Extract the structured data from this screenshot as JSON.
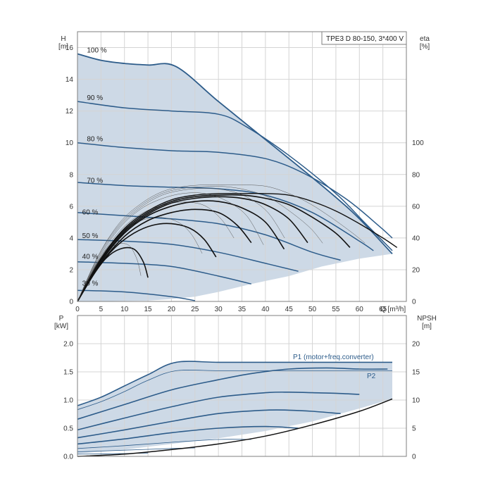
{
  "chart_data": [
    {
      "type": "line",
      "title": "TPE3 D 80-150, 3*400 V",
      "ylabel": "H",
      "yunit": "[m]",
      "y2label": "eta",
      "y2unit": "[%]",
      "xlabel": "Q [m³/h]",
      "xlim": [
        0,
        70
      ],
      "ylim": [
        0,
        17
      ],
      "y2lim": [
        0,
        100
      ],
      "xticks": [
        "0",
        "5",
        "10",
        "15",
        "20",
        "25",
        "30",
        "35",
        "40",
        "45",
        "50",
        "55",
        "60",
        "65"
      ],
      "yticks": [
        "0",
        "2",
        "4",
        "6",
        "8",
        "10",
        "12",
        "14",
        "16"
      ],
      "y2ticks": [
        "0",
        "20",
        "40",
        "60",
        "80",
        "100"
      ],
      "grid": true,
      "colors": {
        "envelope_fill": "#cdd9e6",
        "curve": "#2d5c8a",
        "eta": "#111111"
      },
      "series": [
        {
          "name": "100 %",
          "points": [
            [
              0,
              15.6
            ],
            [
              5,
              15.2
            ],
            [
              10,
              15.0
            ],
            [
              15,
              14.9
            ],
            [
              21,
              14.8
            ],
            [
              30,
              12.6
            ],
            [
              40,
              10.2
            ],
            [
              50,
              7.8
            ],
            [
              59,
              5.5
            ],
            [
              67,
              3.0
            ]
          ]
        },
        {
          "name": "90 %",
          "points": [
            [
              0,
              12.6
            ],
            [
              10,
              12.2
            ],
            [
              20,
              12.0
            ],
            [
              30,
              11.8
            ],
            [
              36,
              11.0
            ],
            [
              45,
              9.2
            ],
            [
              55,
              6.8
            ],
            [
              61,
              5.0
            ],
            [
              67,
              3.2
            ]
          ]
        },
        {
          "name": "80 %",
          "points": [
            [
              0,
              10.0
            ],
            [
              10,
              9.7
            ],
            [
              20,
              9.5
            ],
            [
              30,
              9.4
            ],
            [
              40,
              9.0
            ],
            [
              48,
              8.1
            ],
            [
              57,
              6.5
            ],
            [
              64,
              4.8
            ],
            [
              67,
              4.0
            ]
          ]
        },
        {
          "name": "70 %",
          "points": [
            [
              0,
              7.5
            ],
            [
              10,
              7.3
            ],
            [
              20,
              7.2
            ],
            [
              30,
              7.1
            ],
            [
              40,
              6.7
            ],
            [
              50,
              5.6
            ],
            [
              60,
              3.8
            ],
            [
              63,
              3.2
            ]
          ]
        },
        {
          "name": "60 %",
          "points": [
            [
              0,
              5.6
            ],
            [
              10,
              5.4
            ],
            [
              20,
              5.2
            ],
            [
              30,
              4.9
            ],
            [
              40,
              4.2
            ],
            [
              50,
              3.1
            ],
            [
              56,
              2.6
            ]
          ]
        },
        {
          "name": "50 %",
          "points": [
            [
              0,
              3.9
            ],
            [
              10,
              3.8
            ],
            [
              20,
              3.6
            ],
            [
              30,
              3.1
            ],
            [
              40,
              2.4
            ],
            [
              47,
              1.9
            ]
          ]
        },
        {
          "name": "40 %",
          "points": [
            [
              0,
              2.5
            ],
            [
              10,
              2.4
            ],
            [
              20,
              2.2
            ],
            [
              30,
              1.6
            ],
            [
              37,
              1.1
            ]
          ]
        },
        {
          "name": "",
          "points": [
            [
              0,
              0.7
            ],
            [
              10,
              0.6
            ],
            [
              20,
              0.3
            ],
            [
              25,
              0.05
            ]
          ]
        }
      ],
      "eta_curves": [
        {
          "points": [
            [
              0,
              0
            ],
            [
              3,
              1.5
            ],
            [
              6,
              2.7
            ],
            [
              9,
              3.3
            ],
            [
              12,
              3.3
            ],
            [
              14,
              2.5
            ],
            [
              15,
              1.5
            ]
          ]
        },
        {
          "points": [
            [
              0,
              0
            ],
            [
              4,
              2.0
            ],
            [
              8,
              3.4
            ],
            [
              12,
              4.3
            ],
            [
              16,
              4.8
            ],
            [
              20,
              4.9
            ],
            [
              24,
              4.6
            ],
            [
              27,
              3.9
            ],
            [
              29.5,
              2.8
            ]
          ]
        },
        {
          "points": [
            [
              0,
              0
            ],
            [
              5,
              2.4
            ],
            [
              10,
              4.1
            ],
            [
              15,
              5.1
            ],
            [
              20,
              5.6
            ],
            [
              25,
              5.8
            ],
            [
              30,
              5.6
            ],
            [
              34,
              4.8
            ],
            [
              37,
              3.7
            ]
          ]
        },
        {
          "points": [
            [
              0,
              0
            ],
            [
              5,
              2.5
            ],
            [
              10,
              4.3
            ],
            [
              15,
              5.4
            ],
            [
              20,
              6.0
            ],
            [
              25,
              6.3
            ],
            [
              30,
              6.3
            ],
            [
              35,
              5.9
            ],
            [
              40,
              5.0
            ],
            [
              44,
              3.3
            ]
          ]
        },
        {
          "points": [
            [
              0,
              0
            ],
            [
              5,
              2.6
            ],
            [
              10,
              4.4
            ],
            [
              15,
              5.5
            ],
            [
              20,
              6.2
            ],
            [
              25,
              6.5
            ],
            [
              30,
              6.6
            ],
            [
              35,
              6.5
            ],
            [
              40,
              6.1
            ],
            [
              45,
              5.2
            ],
            [
              49,
              3.7
            ]
          ]
        },
        {
          "points": [
            [
              0,
              0
            ],
            [
              5,
              2.7
            ],
            [
              10,
              4.5
            ],
            [
              15,
              5.6
            ],
            [
              20,
              6.3
            ],
            [
              25,
              6.6
            ],
            [
              30,
              6.7
            ],
            [
              35,
              6.7
            ],
            [
              40,
              6.5
            ],
            [
              45,
              6.1
            ],
            [
              50,
              5.3
            ],
            [
              55,
              4.3
            ],
            [
              58,
              3.4
            ]
          ]
        },
        {
          "points": [
            [
              0,
              0
            ],
            [
              5,
              2.7
            ],
            [
              10,
              4.6
            ],
            [
              15,
              5.7
            ],
            [
              20,
              6.4
            ],
            [
              25,
              6.7
            ],
            [
              30,
              6.8
            ],
            [
              35,
              6.8
            ],
            [
              40,
              6.8
            ],
            [
              45,
              6.7
            ],
            [
              50,
              6.3
            ],
            [
              55,
              5.7
            ],
            [
              60,
              4.9
            ],
            [
              65,
              4.0
            ],
            [
              68,
              3.4
            ]
          ]
        }
      ],
      "labels": [
        {
          "text": "100 %",
          "x": 2,
          "y": 15.6
        },
        {
          "text": "90 %",
          "x": 2,
          "y": 12.6
        },
        {
          "text": "80 %",
          "x": 2,
          "y": 10.0
        },
        {
          "text": "70 %",
          "x": 2,
          "y": 7.4
        },
        {
          "text": "60 %",
          "x": 1,
          "y": 5.4
        },
        {
          "text": "50 %",
          "x": 1,
          "y": 3.9
        },
        {
          "text": "40 %",
          "x": 1,
          "y": 2.6
        },
        {
          "text": "30 %",
          "x": 1,
          "y": 0.9
        }
      ]
    },
    {
      "type": "line",
      "ylabel": "P",
      "yunit": "[kW]",
      "y2label": "NPSH",
      "y2unit": "[m]",
      "xlim": [
        0,
        70
      ],
      "ylim": [
        0,
        2.5
      ],
      "y2lim": [
        0,
        25
      ],
      "yticks": [
        "0.0",
        "0.5",
        "1.0",
        "1.5",
        "2.0"
      ],
      "y2ticks": [
        "0",
        "5",
        "10",
        "15",
        "20"
      ],
      "grid": true,
      "annotations": [
        "P1 (motor+freq.converter)",
        "P2"
      ],
      "series": [
        {
          "name": "P1 (motor+freq.converter)",
          "points": [
            [
              0,
              0.9
            ],
            [
              5,
              1.05
            ],
            [
              10,
              1.25
            ],
            [
              15,
              1.45
            ],
            [
              21,
              1.67
            ],
            [
              30,
              1.67
            ],
            [
              40,
              1.67
            ],
            [
              50,
              1.67
            ],
            [
              58,
              1.67
            ],
            [
              62,
              1.67
            ],
            [
              67,
              1.67
            ]
          ]
        },
        {
          "name": "P2",
          "points": [
            [
              0,
              0.83
            ],
            [
              5,
              0.97
            ],
            [
              10,
              1.15
            ],
            [
              15,
              1.35
            ],
            [
              21,
              1.52
            ],
            [
              30,
              1.52
            ],
            [
              40,
              1.52
            ],
            [
              50,
              1.52
            ],
            [
              60,
              1.52
            ],
            [
              67,
              1.52
            ]
          ]
        },
        {
          "name": "",
          "points": [
            [
              0,
              0.66
            ],
            [
              10,
              0.92
            ],
            [
              20,
              1.18
            ],
            [
              30,
              1.36
            ],
            [
              37,
              1.47
            ],
            [
              45,
              1.55
            ],
            [
              53,
              1.57
            ],
            [
              60,
              1.55
            ],
            [
              66,
              1.55
            ]
          ]
        },
        {
          "name": "",
          "points": [
            [
              0,
              0.47
            ],
            [
              10,
              0.68
            ],
            [
              20,
              0.88
            ],
            [
              30,
              1.05
            ],
            [
              40,
              1.13
            ],
            [
              45,
              1.14
            ],
            [
              50,
              1.13
            ],
            [
              55,
              1.12
            ],
            [
              60,
              1.1
            ]
          ]
        },
        {
          "name": "",
          "points": [
            [
              0,
              0.33
            ],
            [
              10,
              0.47
            ],
            [
              20,
              0.62
            ],
            [
              30,
              0.76
            ],
            [
              40,
              0.82
            ],
            [
              45,
              0.82
            ],
            [
              50,
              0.8
            ],
            [
              56,
              0.76
            ]
          ]
        },
        {
          "name": "",
          "points": [
            [
              0,
              0.22
            ],
            [
              10,
              0.31
            ],
            [
              20,
              0.42
            ],
            [
              30,
              0.5
            ],
            [
              40,
              0.53
            ],
            [
              47,
              0.5
            ]
          ]
        },
        {
          "name": "",
          "points": [
            [
              0,
              0.14
            ],
            [
              10,
              0.19
            ],
            [
              20,
              0.25
            ],
            [
              30,
              0.3
            ],
            [
              37,
              0.3
            ]
          ]
        },
        {
          "name": "",
          "points": [
            [
              0,
              0.08
            ],
            [
              10,
              0.11
            ],
            [
              20,
              0.14
            ],
            [
              25,
              0.15
            ]
          ]
        },
        {
          "name": "",
          "points": [
            [
              0,
              0.04
            ],
            [
              10,
              0.05
            ],
            [
              15,
              0.06
            ]
          ]
        }
      ],
      "npsh": {
        "points": [
          [
            0,
            0.0
          ],
          [
            10,
            0.4
          ],
          [
            20,
            1.2
          ],
          [
            30,
            2.2
          ],
          [
            40,
            3.6
          ],
          [
            50,
            5.6
          ],
          [
            60,
            8.0
          ],
          [
            67,
            10.2
          ]
        ]
      }
    }
  ]
}
